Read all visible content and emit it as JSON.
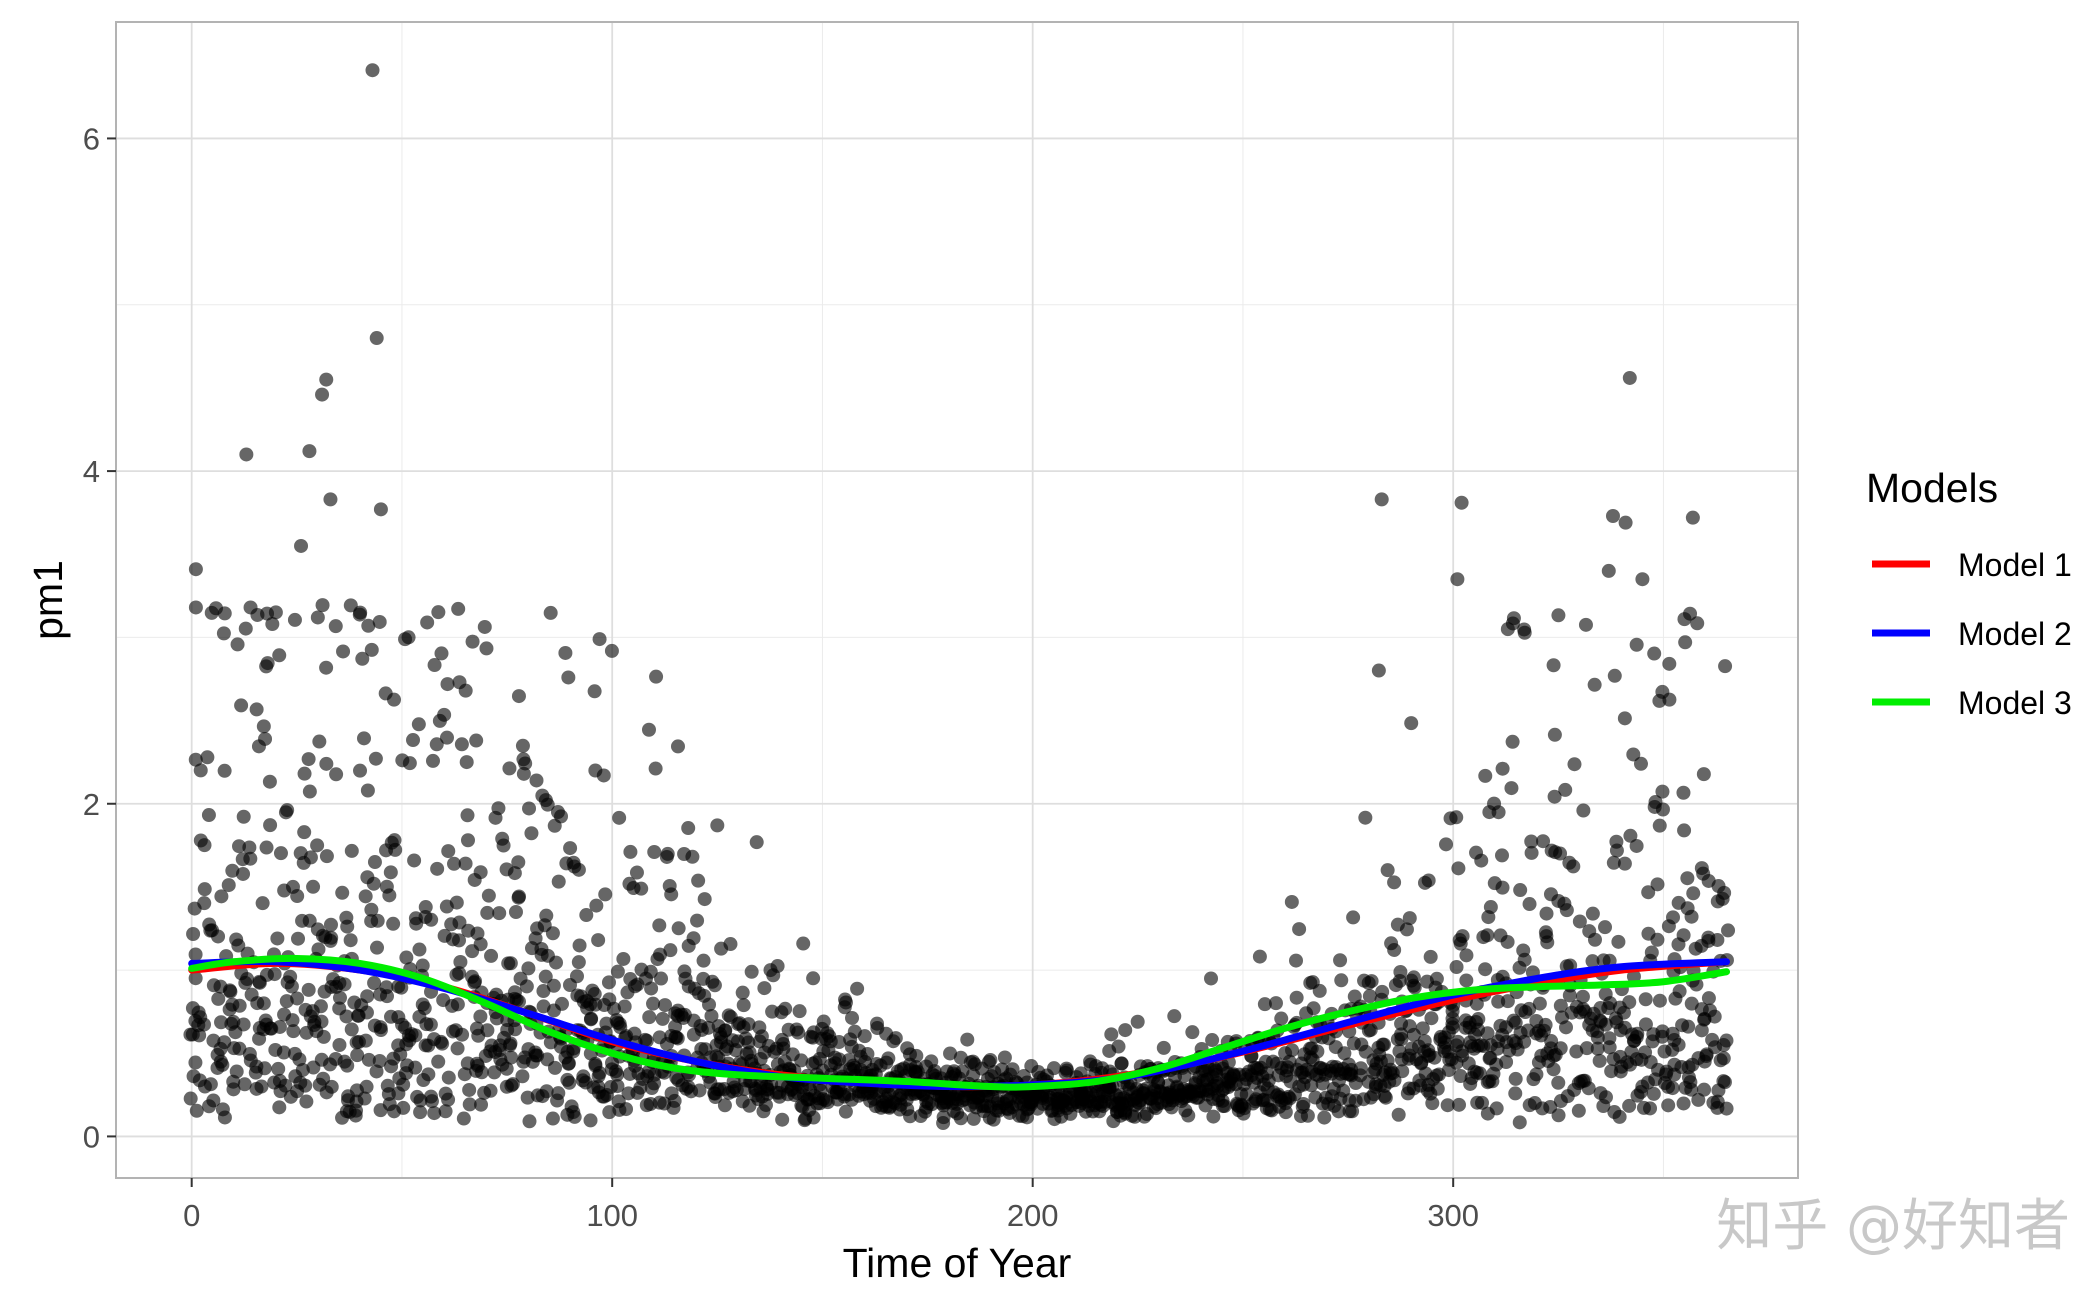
{
  "chart_data": {
    "type": "scatter",
    "title": "",
    "xlabel": "Time of Year",
    "ylabel": "pm1",
    "xlim": [
      -18,
      382
    ],
    "ylim": [
      -0.25,
      6.7
    ],
    "x_ticks": [
      0,
      100,
      200,
      300
    ],
    "y_ticks": [
      0,
      2,
      4,
      6
    ],
    "x_minor_ticks": [
      50,
      150,
      250,
      350
    ],
    "y_minor_ticks": [
      1,
      3,
      5
    ],
    "grid": true,
    "legend": {
      "title": "Models",
      "position": "right",
      "entries": [
        {
          "label": "Model 1",
          "color": "#ff0000"
        },
        {
          "label": "Model 2",
          "color": "#0000ff"
        },
        {
          "label": "Model 3",
          "color": "#00ee00"
        }
      ]
    },
    "point_color": "#000000",
    "point_opacity": 0.6,
    "point_series": {
      "name": "",
      "note_on_generation": "",
      "count": 0
    },
    "notable_points": [
      {
        "x": 43,
        "y": 6.41
      },
      {
        "x": 44,
        "y": 4.8
      },
      {
        "x": 32,
        "y": 4.55
      },
      {
        "x": 31,
        "y": 4.46
      },
      {
        "x": 13,
        "y": 4.1
      },
      {
        "x": 28,
        "y": 4.12
      },
      {
        "x": 33,
        "y": 3.83
      },
      {
        "x": 45,
        "y": 3.77
      },
      {
        "x": 342,
        "y": 4.56
      },
      {
        "x": 283,
        "y": 3.83
      },
      {
        "x": 302,
        "y": 3.81
      },
      {
        "x": 338,
        "y": 3.73
      },
      {
        "x": 341,
        "y": 3.69
      },
      {
        "x": 357,
        "y": 3.72
      },
      {
        "x": 97,
        "y": 2.99
      },
      {
        "x": 1,
        "y": 3.41
      },
      {
        "x": 1,
        "y": 3.18
      },
      {
        "x": 14,
        "y": 3.18
      },
      {
        "x": 26,
        "y": 3.55
      },
      {
        "x": 30,
        "y": 3.12
      },
      {
        "x": 42,
        "y": 3.07
      },
      {
        "x": 56,
        "y": 3.09
      },
      {
        "x": 301,
        "y": 3.35
      },
      {
        "x": 313,
        "y": 3.05
      },
      {
        "x": 345,
        "y": 3.35
      },
      {
        "x": 337,
        "y": 3.4
      },
      {
        "x": 355,
        "y": 3.11
      },
      {
        "x": 125,
        "y": 1.87
      },
      {
        "x": 110,
        "y": 1.71
      },
      {
        "x": 113,
        "y": 1.68
      },
      {
        "x": 96,
        "y": 2.2
      },
      {
        "x": 98,
        "y": 2.17
      },
      {
        "x": 79,
        "y": 2.18
      },
      {
        "x": 82,
        "y": 2.14
      }
    ],
    "series": [
      {
        "name": "Model 1",
        "color": "#ff0000",
        "x": [
          0,
          20,
          40,
          60,
          80,
          100,
          120,
          140,
          160,
          180,
          200,
          220,
          240,
          260,
          280,
          300,
          320,
          340,
          365
        ],
        "y": [
          1.0,
          1.04,
          1.0,
          0.9,
          0.74,
          0.57,
          0.45,
          0.37,
          0.33,
          0.3,
          0.31,
          0.36,
          0.45,
          0.57,
          0.7,
          0.82,
          0.92,
          1.0,
          1.05
        ]
      },
      {
        "name": "Model 2",
        "color": "#0000ff",
        "x": [
          0,
          20,
          40,
          60,
          80,
          100,
          120,
          140,
          160,
          180,
          200,
          220,
          240,
          260,
          280,
          300,
          320,
          340,
          365
        ],
        "y": [
          1.04,
          1.05,
          1.0,
          0.89,
          0.74,
          0.58,
          0.45,
          0.36,
          0.32,
          0.3,
          0.31,
          0.35,
          0.45,
          0.58,
          0.72,
          0.85,
          0.95,
          1.02,
          1.05
        ]
      },
      {
        "name": "Model 3",
        "color": "#00ee00",
        "x": [
          0,
          10,
          25,
          40,
          55,
          70,
          85,
          100,
          115,
          130,
          150,
          170,
          190,
          200,
          215,
          230,
          245,
          260,
          275,
          290,
          305,
          320,
          335,
          350,
          365
        ],
        "y": [
          1.01,
          1.05,
          1.07,
          1.04,
          0.95,
          0.8,
          0.63,
          0.5,
          0.41,
          0.37,
          0.35,
          0.33,
          0.3,
          0.3,
          0.33,
          0.41,
          0.53,
          0.65,
          0.75,
          0.83,
          0.88,
          0.9,
          0.91,
          0.93,
          0.99
        ]
      }
    ]
  },
  "watermark": {
    "text": "知乎 @好知者"
  }
}
